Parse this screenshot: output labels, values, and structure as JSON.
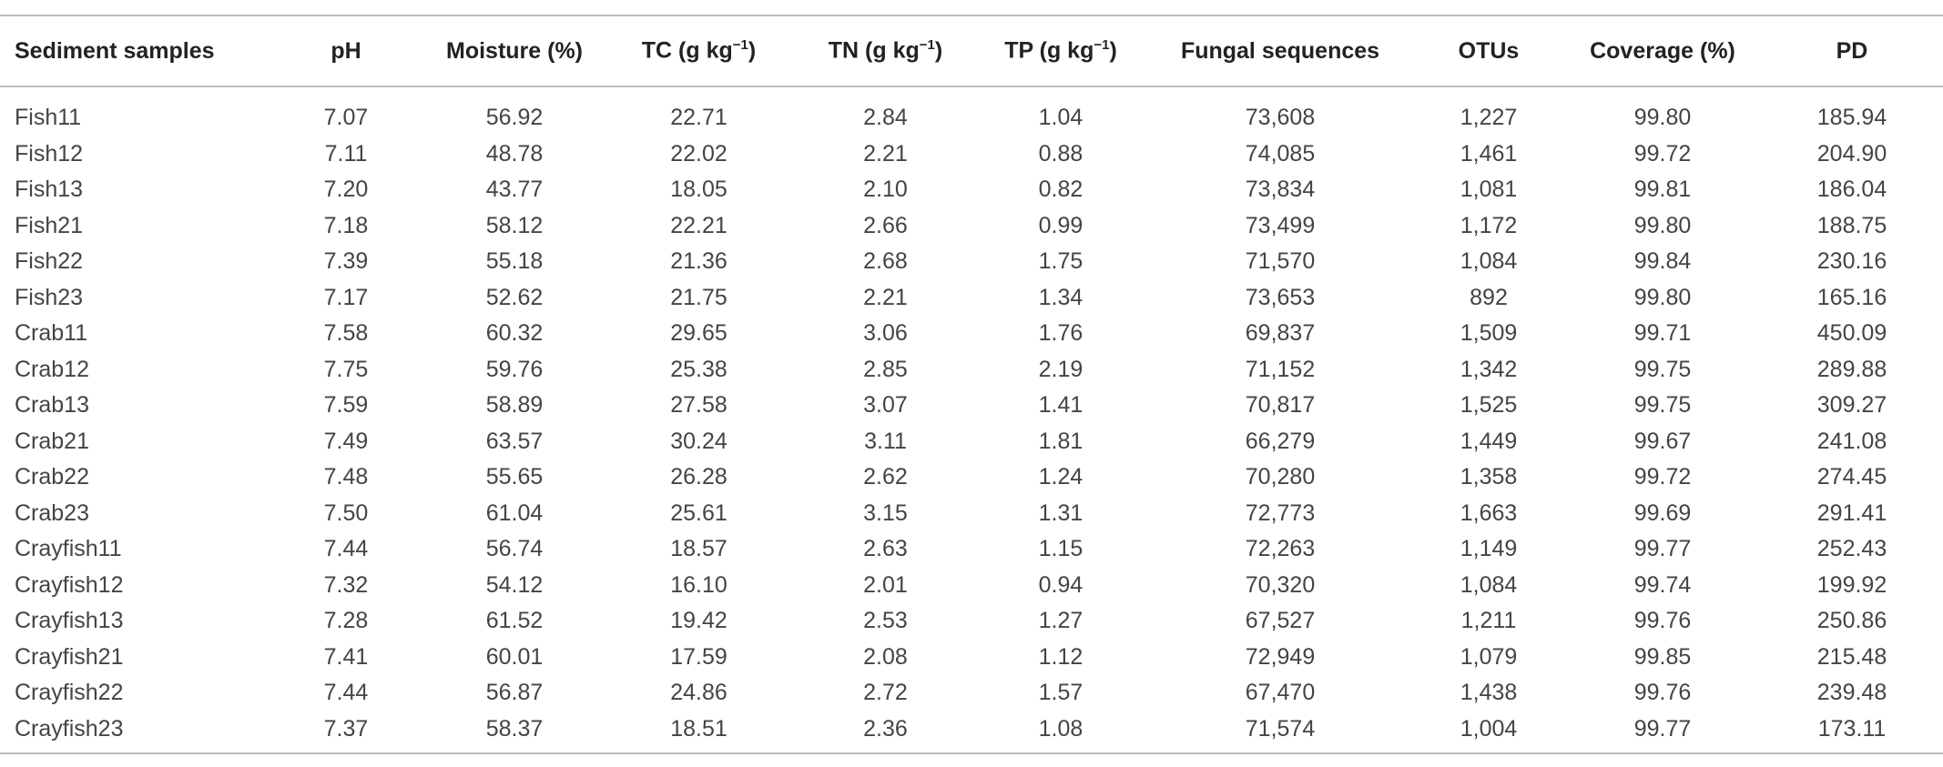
{
  "table": {
    "header": [
      "Sediment samples",
      "pH",
      "Moisture (%)",
      {
        "before": "TC (g kg",
        "sup": "−1",
        "after": ")"
      },
      {
        "before": "TN (g kg",
        "sup": "−1",
        "after": ")"
      },
      {
        "before": "TP (g kg",
        "sup": "−1",
        "after": ")"
      },
      "Fungal sequences",
      "OTUs",
      "Coverage (%)",
      "PD"
    ],
    "rows": [
      [
        "Fish11",
        "7.07",
        "56.92",
        "22.71",
        "2.84",
        "1.04",
        "73,608",
        "1,227",
        "99.80",
        "185.94"
      ],
      [
        "Fish12",
        "7.11",
        "48.78",
        "22.02",
        "2.21",
        "0.88",
        "74,085",
        "1,461",
        "99.72",
        "204.90"
      ],
      [
        "Fish13",
        "7.20",
        "43.77",
        "18.05",
        "2.10",
        "0.82",
        "73,834",
        "1,081",
        "99.81",
        "186.04"
      ],
      [
        "Fish21",
        "7.18",
        "58.12",
        "22.21",
        "2.66",
        "0.99",
        "73,499",
        "1,172",
        "99.80",
        "188.75"
      ],
      [
        "Fish22",
        "7.39",
        "55.18",
        "21.36",
        "2.68",
        "1.75",
        "71,570",
        "1,084",
        "99.84",
        "230.16"
      ],
      [
        "Fish23",
        "7.17",
        "52.62",
        "21.75",
        "2.21",
        "1.34",
        "73,653",
        "892",
        "99.80",
        "165.16"
      ],
      [
        "Crab11",
        "7.58",
        "60.32",
        "29.65",
        "3.06",
        "1.76",
        "69,837",
        "1,509",
        "99.71",
        "450.09"
      ],
      [
        "Crab12",
        "7.75",
        "59.76",
        "25.38",
        "2.85",
        "2.19",
        "71,152",
        "1,342",
        "99.75",
        "289.88"
      ],
      [
        "Crab13",
        "7.59",
        "58.89",
        "27.58",
        "3.07",
        "1.41",
        "70,817",
        "1,525",
        "99.75",
        "309.27"
      ],
      [
        "Crab21",
        "7.49",
        "63.57",
        "30.24",
        "3.11",
        "1.81",
        "66,279",
        "1,449",
        "99.67",
        "241.08"
      ],
      [
        "Crab22",
        "7.48",
        "55.65",
        "26.28",
        "2.62",
        "1.24",
        "70,280",
        "1,358",
        "99.72",
        "274.45"
      ],
      [
        "Crab23",
        "7.50",
        "61.04",
        "25.61",
        "3.15",
        "1.31",
        "72,773",
        "1,663",
        "99.69",
        "291.41"
      ],
      [
        "Crayfish11",
        "7.44",
        "56.74",
        "18.57",
        "2.63",
        "1.15",
        "72,263",
        "1,149",
        "99.77",
        "252.43"
      ],
      [
        "Crayfish12",
        "7.32",
        "54.12",
        "16.10",
        "2.01",
        "0.94",
        "70,320",
        "1,084",
        "99.74",
        "199.92"
      ],
      [
        "Crayfish13",
        "7.28",
        "61.52",
        "19.42",
        "2.53",
        "1.27",
        "67,527",
        "1,211",
        "99.76",
        "250.86"
      ],
      [
        "Crayfish21",
        "7.41",
        "60.01",
        "17.59",
        "2.08",
        "1.12",
        "72,949",
        "1,079",
        "99.85",
        "215.48"
      ],
      [
        "Crayfish22",
        "7.44",
        "56.87",
        "24.86",
        "2.72",
        "1.57",
        "67,470",
        "1,438",
        "99.76",
        "239.48"
      ],
      [
        "Crayfish23",
        "7.37",
        "58.37",
        "18.51",
        "2.36",
        "1.08",
        "71,574",
        "1,004",
        "99.77",
        "173.11"
      ]
    ]
  }
}
